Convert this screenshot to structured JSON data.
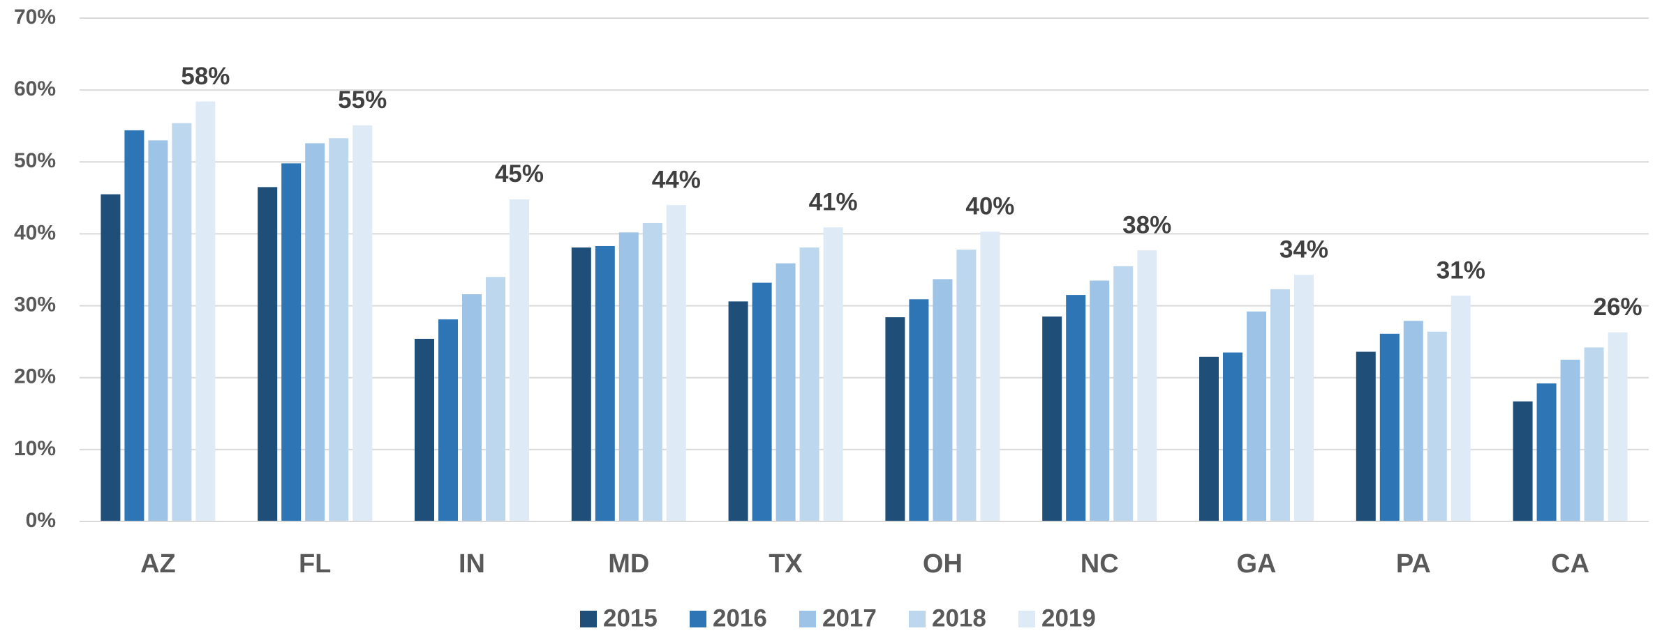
{
  "chart_data": {
    "type": "bar",
    "categories": [
      "AZ",
      "FL",
      "IN",
      "MD",
      "TX",
      "OH",
      "NC",
      "GA",
      "PA",
      "CA"
    ],
    "series": [
      {
        "name": "2015",
        "color": "#1f4e79",
        "values": [
          45.5,
          46.5,
          25.4,
          38.1,
          30.6,
          28.4,
          28.5,
          22.9,
          23.6,
          16.7
        ]
      },
      {
        "name": "2016",
        "color": "#2e75b6",
        "values": [
          54.4,
          49.8,
          28.1,
          38.3,
          33.2,
          30.9,
          31.5,
          23.5,
          26.1,
          19.2
        ]
      },
      {
        "name": "2017",
        "color": "#9dc3e6",
        "values": [
          53.0,
          52.6,
          31.6,
          40.2,
          35.9,
          33.7,
          33.5,
          29.2,
          27.9,
          22.5
        ]
      },
      {
        "name": "2018",
        "color": "#bdd7ee",
        "values": [
          55.4,
          53.3,
          34.0,
          41.5,
          38.1,
          37.8,
          35.5,
          32.3,
          26.4,
          24.2
        ]
      },
      {
        "name": "2019",
        "color": "#deebf7",
        "values": [
          58.4,
          55.1,
          44.8,
          44.0,
          40.9,
          40.3,
          37.7,
          34.3,
          31.4,
          26.3
        ],
        "value_labels": [
          "58%",
          "55%",
          "45%",
          "44%",
          "41%",
          "40%",
          "38%",
          "34%",
          "31%",
          "26%"
        ]
      }
    ],
    "ylim": [
      0,
      70
    ],
    "yticks": [
      {
        "value": 0,
        "label": "0%"
      },
      {
        "value": 10,
        "label": "10%"
      },
      {
        "value": 20,
        "label": "20%"
      },
      {
        "value": 30,
        "label": "30%"
      },
      {
        "value": 40,
        "label": "40%"
      },
      {
        "value": 50,
        "label": "50%"
      },
      {
        "value": 60,
        "label": "60%"
      },
      {
        "value": 70,
        "label": "70%"
      }
    ],
    "grid": true,
    "legend": "bottom"
  }
}
